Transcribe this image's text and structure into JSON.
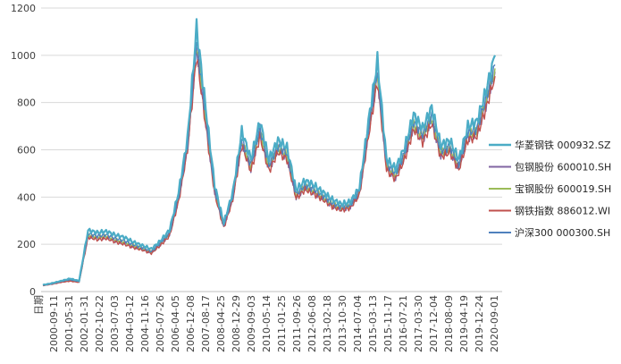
{
  "chart_data": {
    "type": "line",
    "ylim": [
      0,
      1200
    ],
    "yticks": [
      0,
      200,
      400,
      600,
      800,
      1000,
      1200
    ],
    "xlabel_first": "日期",
    "xticks": [
      "2000-09-11",
      "2001-05-31",
      "2002-01-31",
      "2002-10-22",
      "2003-07-03",
      "2004-03-12",
      "2004-11-16",
      "2005-07-26",
      "2006-04-05",
      "2006-12-08",
      "2007-08-17",
      "2008-04-25",
      "2008-12-29",
      "2009-09-03",
      "2010-05-14",
      "2011-01-25",
      "2011-09-26",
      "2012-06-08",
      "2013-02-18",
      "2013-10-30",
      "2014-07-04",
      "2015-03-13",
      "2015-11-17",
      "2016-07-21",
      "2017-03-30",
      "2017-12-04",
      "2018-08-09",
      "2019-04-19",
      "2019-12-24",
      "2020-09-01"
    ],
    "legend_position": "right",
    "series": [
      {
        "name": "华菱钢铁 000932.SZ",
        "color": "#4bacc6",
        "values": [
          28,
          35,
          45,
          55,
          45,
          260,
          250,
          255,
          240,
          230,
          210,
          195,
          180,
          215,
          260,
          420,
          650,
          1120,
          780,
          450,
          290,
          420,
          680,
          560,
          720,
          560,
          640,
          610,
          430,
          470,
          450,
          420,
          390,
          370,
          380,
          440,
          720,
          980,
          560,
          520,
          610,
          750,
          690,
          780,
          620,
          640,
          560,
          700,
          720,
          850,
          1000
        ]
      },
      {
        "name": "包钢股份 600010.SH",
        "color": "#8064a2",
        "values": [
          26,
          32,
          40,
          46,
          40,
          235,
          225,
          230,
          215,
          205,
          190,
          180,
          165,
          200,
          240,
          390,
          610,
          1030,
          720,
          420,
          275,
          395,
          630,
          520,
          670,
          520,
          600,
          570,
          400,
          440,
          420,
          395,
          365,
          350,
          360,
          415,
          670,
          910,
          525,
          485,
          570,
          700,
          645,
          725,
          580,
          600,
          525,
          655,
          670,
          790,
          930
        ]
      },
      {
        "name": "宝钢股份 600019.SH",
        "color": "#9bbb59",
        "values": [
          27,
          33,
          42,
          48,
          42,
          240,
          230,
          235,
          220,
          210,
          195,
          183,
          168,
          203,
          245,
          395,
          620,
          1050,
          735,
          428,
          280,
          400,
          640,
          528,
          680,
          528,
          608,
          578,
          405,
          446,
          426,
          400,
          370,
          355,
          365,
          420,
          680,
          925,
          533,
          492,
          578,
          710,
          655,
          737,
          588,
          608,
          532,
          664,
          680,
          802,
          945
        ]
      },
      {
        "name": "钢铁指数 886012.WI",
        "color": "#c0504d",
        "values": [
          25,
          31,
          39,
          44,
          39,
          230,
          220,
          225,
          210,
          200,
          186,
          176,
          162,
          196,
          235,
          380,
          600,
          1000,
          705,
          412,
          270,
          388,
          620,
          510,
          655,
          510,
          590,
          560,
          395,
          432,
          413,
          388,
          360,
          345,
          355,
          408,
          655,
          890,
          515,
          476,
          560,
          688,
          633,
          712,
          570,
          590,
          516,
          643,
          658,
          776,
          912
        ]
      },
      {
        "name": "沪深300 000300.SH",
        "color": "#4f81bd",
        "values": [
          27,
          33,
          43,
          50,
          43,
          245,
          235,
          240,
          225,
          215,
          198,
          186,
          170,
          206,
          248,
          400,
          625,
          1060,
          745,
          432,
          282,
          405,
          648,
          535,
          690,
          535,
          615,
          585,
          410,
          452,
          432,
          405,
          375,
          358,
          368,
          425,
          690,
          935,
          540,
          500,
          585,
          720,
          665,
          748,
          595,
          615,
          540,
          672,
          690,
          815,
          960
        ]
      }
    ]
  }
}
